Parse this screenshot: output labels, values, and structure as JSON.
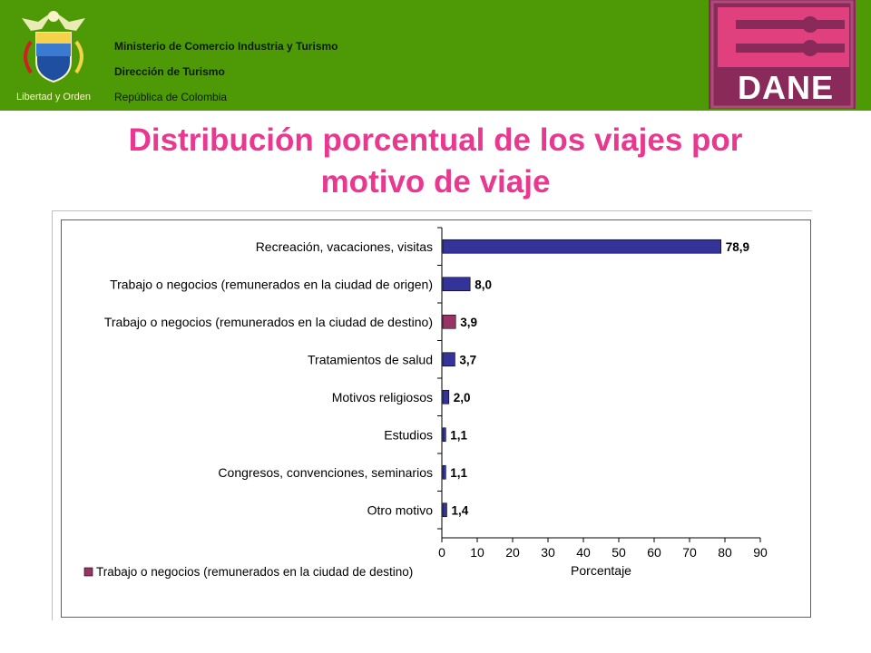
{
  "header": {
    "crest_motto": "Libertad y Orden",
    "lines": [
      "Ministerio de Comercio Industria y Turismo",
      "Dirección de Turismo",
      "República de Colombia"
    ],
    "logo_text": "DANE",
    "colors": {
      "band": "#4e9a06",
      "logo_bg": "#8a2a5a",
      "logo_accent": "#e0407e"
    }
  },
  "title": "Distribución porcentual de los viajes por motivo de viaje",
  "chart_data": {
    "type": "bar",
    "orientation": "horizontal",
    "categories": [
      "Recreación, vacaciones, visitas",
      "Trabajo o negocios (remunerados en la ciudad de origen)",
      "Trabajo o negocios (remunerados en la ciudad de destino)",
      "Tratamientos de salud",
      "Motivos religiosos",
      "Estudios",
      "Congresos, convenciones, seminarios",
      "Otro motivo"
    ],
    "values": [
      78.9,
      8.0,
      3.9,
      3.7,
      2.0,
      1.1,
      1.1,
      1.4
    ],
    "value_labels": [
      "78,9",
      "8,0",
      "3,9",
      "3,7",
      "2,0",
      "1,1",
      "1,1",
      "1,4"
    ],
    "highlight_index": 2,
    "bar_color": "#333399",
    "highlight_color": "#993366",
    "xlim": [
      0,
      90
    ],
    "xticks": [
      "0",
      "10",
      "20",
      "30",
      "40",
      "50",
      "60",
      "70",
      "80",
      "90"
    ],
    "xlabel": "Porcentaje",
    "legend": [
      {
        "label": "Trabajo o negocios (remunerados en la ciudad de destino)",
        "color": "#993366"
      }
    ],
    "legend_position": "bottom-left",
    "grid": false
  }
}
